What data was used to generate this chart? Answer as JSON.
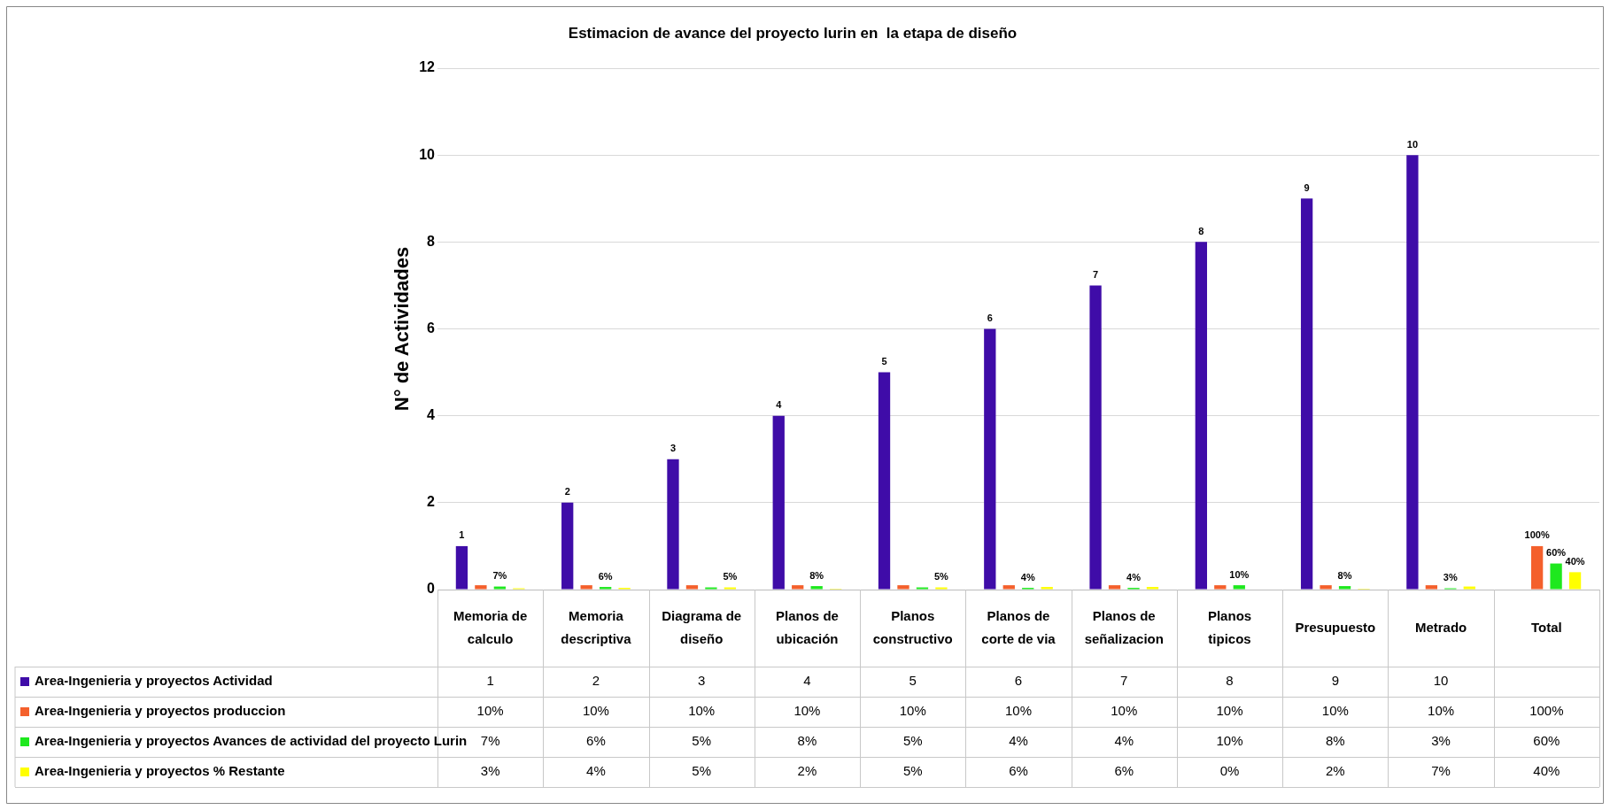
{
  "chart_data": {
    "type": "bar",
    "title": "Estimacion de avance del proyecto lurin en  la etapa de diseño",
    "ylabel": "N° de Actividades",
    "categories": [
      "Memoria de calculo",
      "Memoria descriptiva",
      "Diagrama de diseño",
      "Planos de ubicación",
      "Planos constructivo",
      "Planos de corte de via",
      "Planos de señalizacion",
      "Planos tipicos",
      "Presupuesto",
      "Metrado",
      "Total"
    ],
    "series": [
      {
        "name": "Area-Ingenieria y proyectos Actividad",
        "color": "#3f0ca8",
        "values": [
          1,
          2,
          3,
          4,
          5,
          6,
          7,
          8,
          9,
          10,
          null
        ],
        "data_labels": true,
        "value_labels": [
          "1",
          "2",
          "3",
          "4",
          "5",
          "6",
          "7",
          "8",
          "9",
          "10",
          null
        ]
      },
      {
        "name": "Area-Ingenieria y proyectos produccion",
        "color": "#f4602c",
        "values": [
          0.1,
          0.1,
          0.1,
          0.1,
          0.1,
          0.1,
          0.1,
          0.1,
          0.1,
          0.1,
          1
        ],
        "value_labels": [
          "10%",
          "10%",
          "10%",
          "10%",
          "10%",
          "10%",
          "10%",
          "10%",
          "10%",
          "10%",
          "100%"
        ]
      },
      {
        "name": "Area-Ingenieria y proyectos Avances de actividad del proyecto Lurin",
        "color": "#1ee81e",
        "values": [
          0.07,
          0.06,
          0.05,
          0.08,
          0.05,
          0.04,
          0.04,
          0.1,
          0.08,
          0.03,
          0.6
        ],
        "value_labels": [
          "7%",
          "6%",
          "5%",
          "8%",
          "5%",
          "4%",
          "4%",
          "10%",
          "8%",
          "3%",
          "60%"
        ]
      },
      {
        "name": "Area-Ingenieria y proyectos % Restante",
        "color": "#ffff00",
        "values": [
          0.03,
          0.04,
          0.05,
          0.02,
          0.05,
          0.06,
          0.06,
          0,
          0.02,
          0.07,
          0.4
        ],
        "value_labels": [
          "3%",
          "4%",
          "5%",
          "2%",
          "5%",
          "6%",
          "6%",
          "0%",
          "2%",
          "7%",
          "40%"
        ]
      }
    ],
    "annotations": [
      {
        "text": "7%",
        "x": "Memoria de calculo",
        "y": 0.07
      },
      {
        "text": "6%",
        "x": "Memoria descriptiva",
        "y": 0.06
      },
      {
        "text": "5%",
        "x": "Diagrama de diseño",
        "y": 0.05
      },
      {
        "text": "8%",
        "x": "Planos de ubicación",
        "y": 0.08
      },
      {
        "text": "5%",
        "x": "Planos constructivo",
        "y": 0.05
      },
      {
        "text": "4%",
        "x": "Planos de corte de via",
        "y": 0.04
      },
      {
        "text": "4%",
        "x": "Planos de señalizacion",
        "y": 0.04
      },
      {
        "text": "10%",
        "x": "Planos tipicos",
        "y": 0.1
      },
      {
        "text": "8%",
        "x": "Presupuesto",
        "y": 0.08
      },
      {
        "text": "3%",
        "x": "Metrado",
        "y": 0.03
      },
      {
        "text": "100%",
        "x": "Total",
        "y": 1
      },
      {
        "text": "60%",
        "x": "Total",
        "y": 0.6
      },
      {
        "text": "40%",
        "x": "Total",
        "y": 0.4
      }
    ],
    "ylim": [
      0,
      12
    ],
    "yticks": [
      0,
      2,
      4,
      6,
      8,
      10,
      12
    ],
    "grid": "y",
    "legend": "bottom"
  }
}
